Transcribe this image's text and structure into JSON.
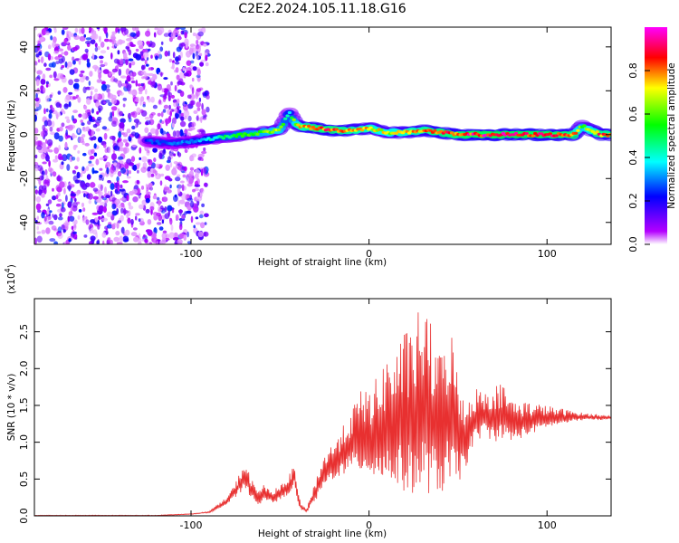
{
  "figure": {
    "title": "C2E2.2024.105.11.18.G16"
  },
  "chart_data": [
    {
      "type": "heatmap",
      "xlabel": "Height of straight line (km)",
      "ylabel": "Frequency (Hz)",
      "xlim": [
        -188,
        136
      ],
      "ylim": [
        -50,
        49
      ],
      "xticks": [
        -100,
        0,
        100
      ],
      "yticks": [
        -40,
        -20,
        0,
        20,
        40
      ],
      "grid": false,
      "colorbar": {
        "label": "Normalized spectral amplitude",
        "range": [
          0.0,
          1.0
        ],
        "ticks": [
          0.0,
          0.2,
          0.4,
          0.6,
          0.8
        ],
        "colors": [
          "#ffffff",
          "#b400ff",
          "#0000ff",
          "#00ffff",
          "#00ff00",
          "#ffff00",
          "#ff0000",
          "#ff00ff"
        ]
      },
      "ridge": {
        "description": "frequency of peak amplitude vs height",
        "x": [
          -125,
          -110,
          -100,
          -90,
          -80,
          -70,
          -60,
          -50,
          -45,
          -40,
          -30,
          -20,
          -10,
          0,
          10,
          20,
          30,
          40,
          50,
          60,
          80,
          100,
          115,
          120,
          130,
          136
        ],
        "y": [
          -3,
          -4,
          -3,
          -2,
          -1,
          0,
          1,
          2,
          10,
          4,
          3,
          2,
          2,
          3,
          1,
          1,
          2,
          1,
          0,
          0,
          0,
          0,
          0,
          4,
          0,
          0
        ],
        "amplitude": [
          0.25,
          0.3,
          0.3,
          0.4,
          0.5,
          0.55,
          0.6,
          0.65,
          0.4,
          0.75,
          0.85,
          0.85,
          0.8,
          0.75,
          0.7,
          0.75,
          0.8,
          0.85,
          0.85,
          0.9,
          0.9,
          0.9,
          0.85,
          0.6,
          0.85,
          0.8
        ]
      },
      "noise_region": {
        "x_range": [
          -188,
          -90
        ],
        "y_range": [
          -50,
          49
        ]
      }
    },
    {
      "type": "line",
      "xlabel": "Height of straight line (km)",
      "ylabel": "SNR (10 * v/v)",
      "y_multiplier_label": "(x10",
      "y_multiplier_exponent": "4",
      "y_multiplier_close": ")",
      "xlim": [
        -188,
        136
      ],
      "ylim": [
        0,
        2.95
      ],
      "xticks": [
        -100,
        0,
        100
      ],
      "yticks": [
        0.0,
        0.5,
        1.0,
        1.5,
        2.0,
        2.5
      ],
      "grid": false,
      "color": "#e83030",
      "series": [
        {
          "envelope_x": [
            -188,
            -120,
            -100,
            -90,
            -80,
            -75,
            -70,
            -66,
            -62,
            -58,
            -55,
            -50,
            -45,
            -42,
            -40,
            -38,
            -35,
            -30,
            -25,
            -20,
            -15,
            -10,
            -5,
            0,
            5,
            10,
            15,
            20,
            25,
            30,
            35,
            40,
            45,
            50,
            55,
            60,
            65,
            70,
            75,
            80,
            90,
            100,
            110,
            120,
            130,
            136
          ],
          "envelope_y": [
            0.01,
            0.01,
            0.03,
            0.06,
            0.25,
            0.45,
            0.75,
            0.5,
            0.35,
            0.45,
            0.35,
            0.4,
            0.55,
            0.7,
            0.35,
            0.15,
            0.1,
            0.5,
            0.85,
            1.0,
            1.2,
            1.45,
            1.7,
            1.75,
            1.9,
            2.2,
            2.3,
            2.5,
            2.6,
            2.95,
            2.6,
            2.2,
            2.75,
            1.95,
            1.6,
            1.75,
            1.7,
            1.8,
            1.8,
            1.6,
            1.55,
            1.5,
            1.45,
            1.4,
            1.38,
            1.35
          ],
          "baseline_y": [
            0.0,
            0.0,
            0.02,
            0.04,
            0.15,
            0.25,
            0.35,
            0.25,
            0.15,
            0.2,
            0.18,
            0.2,
            0.3,
            0.4,
            0.15,
            0.08,
            0.05,
            0.2,
            0.4,
            0.5,
            0.55,
            0.6,
            0.6,
            0.55,
            0.5,
            0.45,
            0.4,
            0.3,
            0.3,
            0.3,
            0.3,
            0.3,
            0.35,
            0.4,
            0.7,
            1.0,
            1.1,
            1.0,
            1.05,
            1.0,
            1.1,
            1.2,
            1.25,
            1.3,
            1.3,
            1.32
          ]
        }
      ]
    }
  ]
}
